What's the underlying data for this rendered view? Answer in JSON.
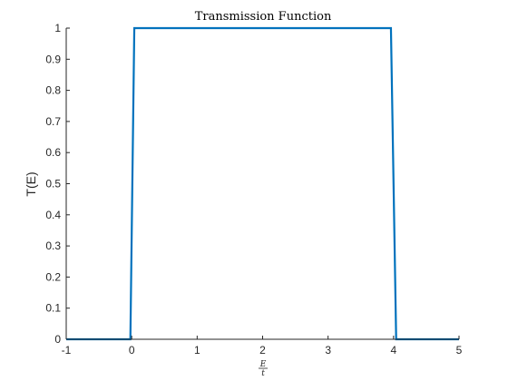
{
  "chart_data": {
    "type": "line",
    "title": "Transmission Function",
    "ylabel": "T(E)",
    "xlabel_numerator": "E",
    "xlabel_denominator": "t",
    "xlim": [
      -1,
      5
    ],
    "ylim": [
      0,
      1
    ],
    "xticks": [
      -1,
      0,
      1,
      2,
      3,
      4,
      5
    ],
    "xtick_labels": [
      "-1",
      "0",
      "1",
      "2",
      "3",
      "4",
      "5"
    ],
    "yticks": [
      0,
      0.1,
      0.2,
      0.3,
      0.4,
      0.5,
      0.6,
      0.7,
      0.8,
      0.9,
      1
    ],
    "ytick_labels": [
      "0",
      "0.1",
      "0.2",
      "0.3",
      "0.4",
      "0.5",
      "0.6",
      "0.7",
      "0.8",
      "0.9",
      "1"
    ],
    "grid": false,
    "series": [
      {
        "color": "#0072BD",
        "x": [
          -1,
          -0.02,
          0.04,
          3.96,
          4.04,
          5
        ],
        "y": [
          0,
          0,
          1,
          1,
          0,
          0
        ]
      }
    ]
  }
}
